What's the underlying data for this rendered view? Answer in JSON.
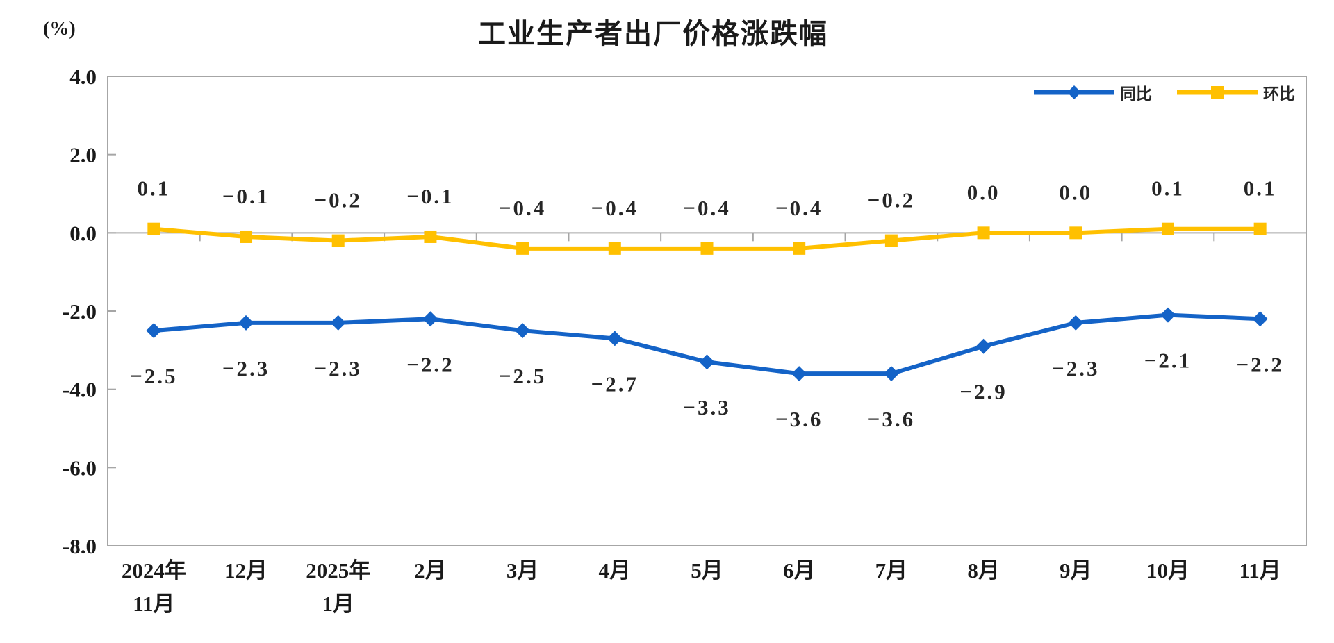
{
  "title": "工业生产者出厂价格涨跌幅",
  "unit_label": "(%)",
  "colors": {
    "axis": "#a6a6a6",
    "yoy_blue": "#1463c7",
    "mom_gold": "#ffc000",
    "text": "#262626"
  },
  "legend": {
    "items": [
      {
        "label": "同比"
      },
      {
        "label": "环比"
      }
    ]
  },
  "chart_data": {
    "type": "line",
    "title": "工业生产者出厂价格涨跌幅",
    "ylabel": "(%)",
    "categories": [
      "2024年\n11月",
      "12月",
      "2025年\n1月",
      "2月",
      "3月",
      "4月",
      "5月",
      "6月",
      "7月",
      "8月",
      "9月",
      "10月",
      "11月"
    ],
    "series": [
      {
        "id": "yoy",
        "name": "同比",
        "color": "#1463c7",
        "marker": "diamond",
        "label_position": "below",
        "values": [
          -2.5,
          -2.3,
          -2.3,
          -2.2,
          -2.5,
          -2.7,
          -3.3,
          -3.6,
          -3.6,
          -2.9,
          -2.3,
          -2.1,
          -2.2
        ]
      },
      {
        "id": "mom",
        "name": "环比",
        "color": "#ffc000",
        "marker": "square",
        "label_position": "above",
        "values": [
          0.1,
          -0.1,
          -0.2,
          -0.1,
          -0.4,
          -0.4,
          -0.4,
          -0.4,
          -0.2,
          0.0,
          0.0,
          0.1,
          0.1
        ]
      }
    ],
    "ylim": [
      -8.0,
      4.0
    ],
    "ytick_step": 2.0,
    "yticks": [
      "4.0",
      "2.0",
      "0.0",
      "-2.0",
      "-4.0",
      "-6.0",
      "-8.0"
    ],
    "grid": false,
    "zero_axis_line": true,
    "legend_position": "top-right"
  }
}
